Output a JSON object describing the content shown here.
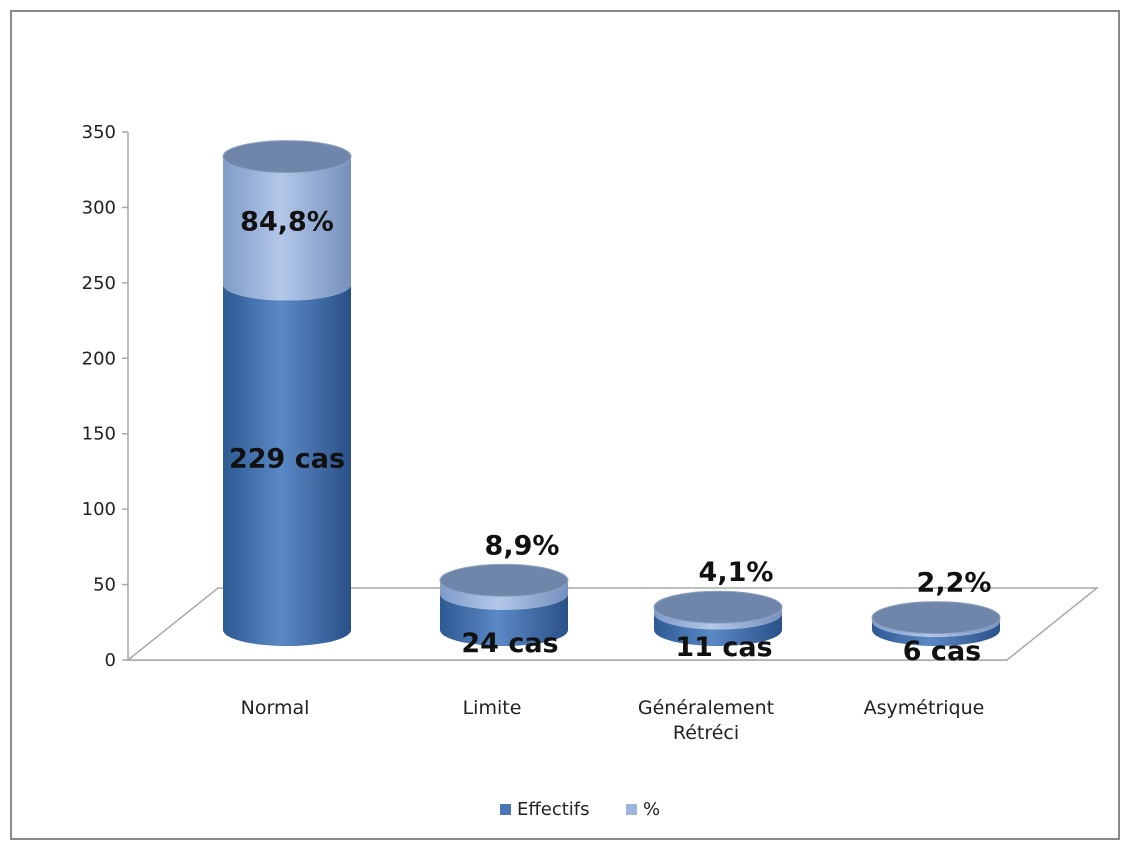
{
  "chart_data": {
    "type": "bar",
    "title": "",
    "xlabel": "",
    "ylabel": "",
    "categories": [
      "Normal",
      "Limite",
      "Généralement Rétréci",
      "Asymétrique"
    ],
    "category_lines": [
      [
        "Normal"
      ],
      [
        "Limite"
      ],
      [
        "Généralement",
        "Rétréci"
      ],
      [
        "Asymétrique"
      ]
    ],
    "stacked": true,
    "series": [
      {
        "name": "Effectifs",
        "values": [
          229,
          24,
          11,
          6
        ],
        "labels": [
          "229 cas",
          "24 cas",
          "11 cas",
          "6 cas"
        ],
        "color": "#4a77b4"
      },
      {
        "name": "%",
        "values": [
          84.8,
          8.9,
          4.1,
          2.2
        ],
        "labels": [
          "84,8%",
          "8,9%",
          "4,1%",
          "2,2%"
        ],
        "color": "#9db4dc"
      }
    ],
    "ylim": [
      0,
      350
    ],
    "yticks": [
      0,
      50,
      100,
      150,
      200,
      250,
      300,
      350
    ],
    "grid": false,
    "legend": "bottom",
    "style": "3d-cylinder"
  }
}
